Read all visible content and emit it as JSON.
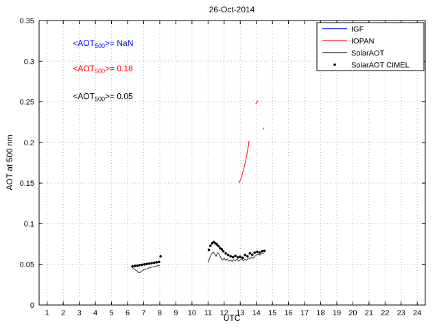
{
  "title": "26-Oct-2014",
  "xlabel": "UTC",
  "ylabel": "AOT at 500 nm",
  "chart_data": {
    "type": "line",
    "title": "26-Oct-2014",
    "xlabel": "UTC",
    "ylabel": "AOT at 500 nm",
    "xlim": [
      0.5,
      24.5
    ],
    "ylim": [
      0,
      0.35
    ],
    "grid": true,
    "xticks": [
      1,
      2,
      3,
      4,
      5,
      6,
      7,
      8,
      9,
      10,
      11,
      12,
      13,
      14,
      15,
      16,
      17,
      18,
      19,
      20,
      21,
      22,
      23,
      24
    ],
    "yticks": [
      0,
      0.05,
      0.1,
      0.15,
      0.2,
      0.25,
      0.3,
      0.35
    ],
    "ytick_labels": [
      "0",
      "0.05",
      "0.1",
      "0.15",
      "0.2",
      "0.25",
      "0.3",
      "0.35"
    ],
    "style": {
      "grid_color": "#b3b3b3",
      "axis_color": "#000000",
      "background": "#ffffff"
    },
    "legend": {
      "position": "top-right",
      "entries": [
        {
          "label": "IGF",
          "color": "#0000ff",
          "marker": "line"
        },
        {
          "label": "IOPAN",
          "color": "#ff0000",
          "marker": "line"
        },
        {
          "label": "SolarAOT",
          "color": "#333333",
          "marker": "line"
        },
        {
          "label": "SolarAOT CIMEL",
          "color": "#000000",
          "marker": "dot"
        }
      ]
    },
    "series": [
      {
        "name": "IGF",
        "type": "line",
        "color": "#0000ff",
        "segments": []
      },
      {
        "name": "IOPAN",
        "type": "line",
        "color": "#ff0000",
        "segments": [
          [
            [
              12.9,
              0.15
            ],
            [
              12.95,
              0.1515
            ],
            [
              13.0,
              0.1535
            ],
            [
              13.05,
              0.156
            ],
            [
              13.1,
              0.159
            ],
            [
              13.15,
              0.1625
            ],
            [
              13.2,
              0.166
            ],
            [
              13.25,
              0.17
            ],
            [
              13.3,
              0.1745
            ],
            [
              13.35,
              0.179
            ],
            [
              13.4,
              0.184
            ],
            [
              13.45,
              0.1895
            ],
            [
              13.5,
              0.1955
            ],
            [
              13.55,
              0.202
            ]
          ],
          [
            [
              13.95,
              0.247
            ],
            [
              14.0,
              0.2485
            ],
            [
              14.05,
              0.25
            ],
            [
              14.1,
              0.2515
            ]
          ],
          [
            [
              14.4,
              0.216
            ],
            [
              14.48,
              0.218
            ]
          ]
        ]
      },
      {
        "name": "SolarAOT",
        "type": "line",
        "color": "#333333",
        "segments": [
          [
            [
              6.3,
              0.046
            ],
            [
              6.4,
              0.0445
            ],
            [
              6.5,
              0.043
            ],
            [
              6.6,
              0.0415
            ],
            [
              6.7,
              0.04
            ],
            [
              6.8,
              0.0405
            ],
            [
              6.9,
              0.042
            ],
            [
              7.0,
              0.0435
            ],
            [
              7.1,
              0.0445
            ],
            [
              7.2,
              0.044
            ],
            [
              7.3,
              0.0455
            ],
            [
              7.4,
              0.046
            ],
            [
              7.5,
              0.0465
            ],
            [
              7.6,
              0.047
            ],
            [
              7.7,
              0.0475
            ],
            [
              7.8,
              0.048
            ],
            [
              7.9,
              0.0485
            ],
            [
              8.0,
              0.049
            ]
          ],
          [
            [
              11.0,
              0.052
            ],
            [
              11.1,
              0.058
            ],
            [
              11.2,
              0.062
            ],
            [
              11.3,
              0.065
            ],
            [
              11.4,
              0.0635
            ],
            [
              11.5,
              0.06
            ],
            [
              11.6,
              0.0645
            ],
            [
              11.7,
              0.062
            ],
            [
              11.8,
              0.058
            ],
            [
              11.9,
              0.0555
            ],
            [
              12.0,
              0.0575
            ],
            [
              12.1,
              0.055
            ],
            [
              12.2,
              0.0565
            ],
            [
              12.3,
              0.054
            ],
            [
              12.4,
              0.0555
            ],
            [
              12.5,
              0.0535
            ],
            [
              12.6,
              0.056
            ],
            [
              12.7,
              0.0545
            ],
            [
              12.8,
              0.0565
            ],
            [
              12.9,
              0.054
            ],
            [
              13.0,
              0.0555
            ],
            [
              13.1,
              0.057
            ],
            [
              13.2,
              0.0545
            ],
            [
              13.3,
              0.0565
            ],
            [
              13.4,
              0.055
            ],
            [
              13.5,
              0.058
            ],
            [
              13.6,
              0.0565
            ],
            [
              13.7,
              0.059
            ],
            [
              13.8,
              0.0575
            ],
            [
              13.9,
              0.06
            ],
            [
              14.0,
              0.0615
            ],
            [
              14.1,
              0.0625
            ],
            [
              14.2,
              0.0615
            ],
            [
              14.3,
              0.063
            ],
            [
              14.4,
              0.0635
            ],
            [
              14.5,
              0.064
            ]
          ]
        ]
      },
      {
        "name": "SolarAOT CIMEL",
        "type": "scatter",
        "color": "#000000",
        "points": [
          [
            6.3,
            0.0475
          ],
          [
            6.45,
            0.048
          ],
          [
            6.6,
            0.0485
          ],
          [
            6.75,
            0.049
          ],
          [
            6.9,
            0.0495
          ],
          [
            7.05,
            0.05
          ],
          [
            7.2,
            0.0505
          ],
          [
            7.35,
            0.051
          ],
          [
            7.5,
            0.0515
          ],
          [
            7.65,
            0.052
          ],
          [
            7.8,
            0.0525
          ],
          [
            7.95,
            0.053
          ],
          [
            8.05,
            0.06
          ],
          [
            11.05,
            0.068
          ],
          [
            11.15,
            0.073
          ],
          [
            11.25,
            0.076
          ],
          [
            11.35,
            0.0775
          ],
          [
            11.45,
            0.076
          ],
          [
            11.55,
            0.0745
          ],
          [
            11.65,
            0.0725
          ],
          [
            11.75,
            0.07
          ],
          [
            11.85,
            0.0685
          ],
          [
            11.95,
            0.066
          ],
          [
            12.1,
            0.0635
          ],
          [
            12.25,
            0.0615
          ],
          [
            12.4,
            0.06
          ],
          [
            12.55,
            0.059
          ],
          [
            12.7,
            0.0605
          ],
          [
            12.85,
            0.0585
          ],
          [
            13.0,
            0.0595
          ],
          [
            13.15,
            0.058
          ],
          [
            13.3,
            0.0615
          ],
          [
            13.45,
            0.06
          ],
          [
            13.6,
            0.0635
          ],
          [
            13.75,
            0.062
          ],
          [
            13.9,
            0.0645
          ],
          [
            14.05,
            0.0655
          ],
          [
            14.2,
            0.0645
          ],
          [
            14.35,
            0.066
          ],
          [
            14.5,
            0.0665
          ]
        ]
      }
    ],
    "annotations": [
      {
        "prefix": "<AOT",
        "sub": "500",
        "suffix": ">=  NaN",
        "color": "#0000ff",
        "x": 2.6,
        "y": 0.322
      },
      {
        "prefix": "<AOT",
        "sub": "500",
        "suffix": ">= 0.18",
        "color": "#ff0000",
        "x": 2.6,
        "y": 0.291
      },
      {
        "prefix": "<AOT",
        "sub": "500",
        "suffix": ">= 0.05",
        "color": "#000000",
        "x": 2.6,
        "y": 0.257
      }
    ]
  }
}
